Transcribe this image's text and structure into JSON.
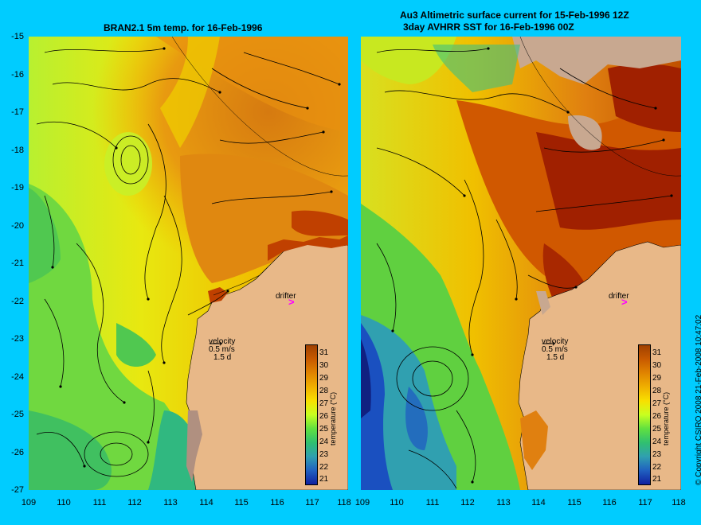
{
  "titles": {
    "left": "BRAN2.1 5m temp. for 16-Feb-1996",
    "right_line1": "Au3 Altimetric surface current for 15-Feb-1996 12Z",
    "right_line2": "3day AVHRR SST for 16-Feb-1996 00Z"
  },
  "axes": {
    "y_labels": [
      "-15",
      "-16",
      "-17",
      "-18",
      "-19",
      "-20",
      "-21",
      "-22",
      "-23",
      "-24",
      "-25",
      "-26",
      "-27"
    ],
    "x_labels": [
      "109",
      "110",
      "111",
      "112",
      "113",
      "114",
      "115",
      "116",
      "117",
      "118"
    ]
  },
  "colorbar": {
    "title": "temperature (°C)",
    "labels": [
      "31",
      "30",
      "29",
      "28",
      "27",
      "26",
      "25",
      "24",
      "23",
      "22",
      "21"
    ],
    "colors": [
      "#a04000",
      "#c85a00",
      "#e08400",
      "#f0b000",
      "#f8e000",
      "#c8ff20",
      "#60e040",
      "#30c070",
      "#30a0b0",
      "#2060c0",
      "#1020a0"
    ]
  },
  "legend": {
    "velocity_title": "velocity",
    "velocity_scale": "0.5 m/s",
    "velocity_days": "1.5 d",
    "drifter": "drifter",
    "drifter_mark": ">"
  },
  "copyright": "© Copyright CSIRO 2008   21-Feb-2008 10:47:02",
  "colors": {
    "background": "#00ccff",
    "land": "#e8b888",
    "cloud": "#c8a890",
    "drifter": "#ff00ff"
  }
}
